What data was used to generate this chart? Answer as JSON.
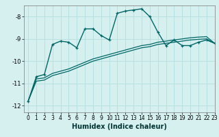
{
  "xlabel": "Humidex (Indice chaleur)",
  "background_color": "#d6f0f0",
  "grid_color": "#b8e0e0",
  "line_color": "#006666",
  "xlim": [
    -0.5,
    23
  ],
  "ylim": [
    -12.3,
    -7.5
  ],
  "yticks": [
    -12,
    -11,
    -10,
    -9,
    -8
  ],
  "xticks": [
    0,
    1,
    2,
    3,
    4,
    5,
    6,
    7,
    8,
    9,
    10,
    11,
    12,
    13,
    14,
    15,
    16,
    17,
    18,
    19,
    20,
    21,
    22,
    23
  ],
  "curve1_x": [
    0,
    1,
    2,
    3,
    4,
    5,
    6,
    7,
    8,
    9,
    10,
    11,
    12,
    13,
    14,
    15,
    16,
    17,
    18,
    19,
    20,
    21,
    22,
    23
  ],
  "curve1_y": [
    -11.8,
    -10.7,
    -10.6,
    -9.25,
    -9.1,
    -9.15,
    -9.4,
    -8.55,
    -8.55,
    -8.85,
    -9.05,
    -7.85,
    -7.75,
    -7.7,
    -7.65,
    -8.0,
    -8.7,
    -9.3,
    -9.05,
    -9.3,
    -9.3,
    -9.15,
    -9.05,
    -9.2
  ],
  "curve2_x": [
    0,
    1,
    2,
    3,
    4,
    5,
    6,
    7,
    8,
    9,
    10,
    11,
    12,
    13,
    14,
    15,
    16,
    17,
    18,
    19,
    20,
    21,
    22,
    23
  ],
  "curve2_y": [
    -11.8,
    -10.8,
    -10.75,
    -10.55,
    -10.45,
    -10.35,
    -10.2,
    -10.05,
    -9.9,
    -9.8,
    -9.7,
    -9.6,
    -9.5,
    -9.4,
    -9.3,
    -9.25,
    -9.15,
    -9.1,
    -9.05,
    -9.0,
    -8.95,
    -8.92,
    -8.9,
    -9.2
  ],
  "curve3_x": [
    0,
    1,
    2,
    3,
    4,
    5,
    6,
    7,
    8,
    9,
    10,
    11,
    12,
    13,
    14,
    15,
    16,
    17,
    18,
    19,
    20,
    21,
    22,
    23
  ],
  "curve3_y": [
    -11.8,
    -10.9,
    -10.85,
    -10.65,
    -10.55,
    -10.45,
    -10.3,
    -10.15,
    -10.0,
    -9.9,
    -9.8,
    -9.7,
    -9.6,
    -9.5,
    -9.4,
    -9.35,
    -9.25,
    -9.2,
    -9.15,
    -9.1,
    -9.05,
    -9.02,
    -9.0,
    -9.2
  ],
  "xlabel_fontsize": 7,
  "tick_fontsize": 5.5
}
